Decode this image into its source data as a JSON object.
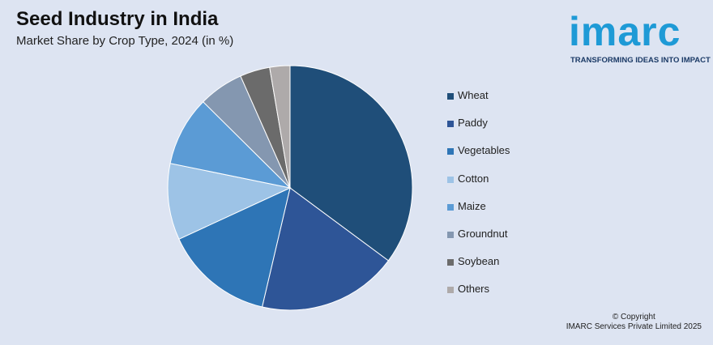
{
  "header": {
    "title": "Seed Industry in India",
    "subtitle": "Market Share by Crop Type, 2024 (in %)"
  },
  "logo": {
    "word": "imarc",
    "tagline": "TRANSFORMING IDEAS INTO IMPACT",
    "color": "#1e9ad6"
  },
  "footer": {
    "line1": "© Copyright",
    "line2": "IMARC Services Private Limited 2025"
  },
  "chart_data": {
    "type": "pie",
    "title": "Seed Industry in India",
    "subtitle": "Market Share by Crop Type, 2024 (in %)",
    "legend_position": "right",
    "categories": [
      "Wheat",
      "Paddy",
      "Vegetables",
      "Cotton",
      "Maize",
      "Groundnut",
      "Soybean",
      "Others"
    ],
    "values": [
      35.5,
      18.7,
      14.6,
      10.2,
      9.3,
      6.0,
      4.0,
      2.7
    ],
    "colors": [
      "#1f4e79",
      "#2e5597",
      "#2e75b6",
      "#9dc3e6",
      "#5b9bd5",
      "#8497b0",
      "#6b6b6b",
      "#aeaaaa"
    ]
  }
}
